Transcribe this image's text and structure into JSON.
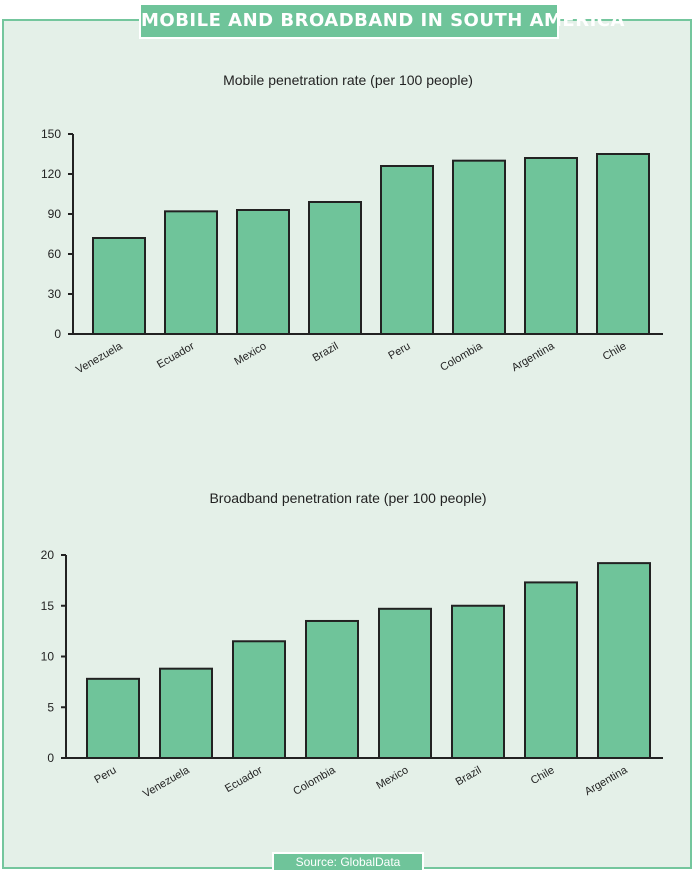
{
  "header": {
    "title": "MOBILE AND BROADBAND IN SOUTH AMERICA"
  },
  "footer": {
    "source": "Source: GlobalData"
  },
  "colors": {
    "bar": "#6fc49a",
    "bar_stroke": "#222222",
    "axis": "#222222",
    "panel": "#e4f0e8"
  },
  "chart_data": [
    {
      "type": "bar",
      "title": "Mobile penetration rate (per 100 people)",
      "categories": [
        "Venezuela",
        "Ecuador",
        "Mexico",
        "Brazil",
        "Peru",
        "Colombia",
        "Argentina",
        "Chile"
      ],
      "values": [
        72,
        92,
        93,
        99,
        126,
        130,
        132,
        135
      ],
      "yticks": [
        0,
        30,
        60,
        90,
        120,
        150
      ],
      "ylim": [
        0,
        150
      ],
      "xlabel": "",
      "ylabel": ""
    },
    {
      "type": "bar",
      "title": "Broadband penetration rate (per 100 people)",
      "categories": [
        "Peru",
        "Venezuela",
        "Ecuador",
        "Colombia",
        "Mexico",
        "Brazil",
        "Chile",
        "Argentina"
      ],
      "values": [
        7.8,
        8.8,
        11.5,
        13.5,
        14.7,
        15.0,
        17.3,
        19.2
      ],
      "yticks": [
        0,
        5,
        10,
        15,
        20
      ],
      "ylim": [
        0,
        20
      ],
      "xlabel": "",
      "ylabel": ""
    }
  ]
}
